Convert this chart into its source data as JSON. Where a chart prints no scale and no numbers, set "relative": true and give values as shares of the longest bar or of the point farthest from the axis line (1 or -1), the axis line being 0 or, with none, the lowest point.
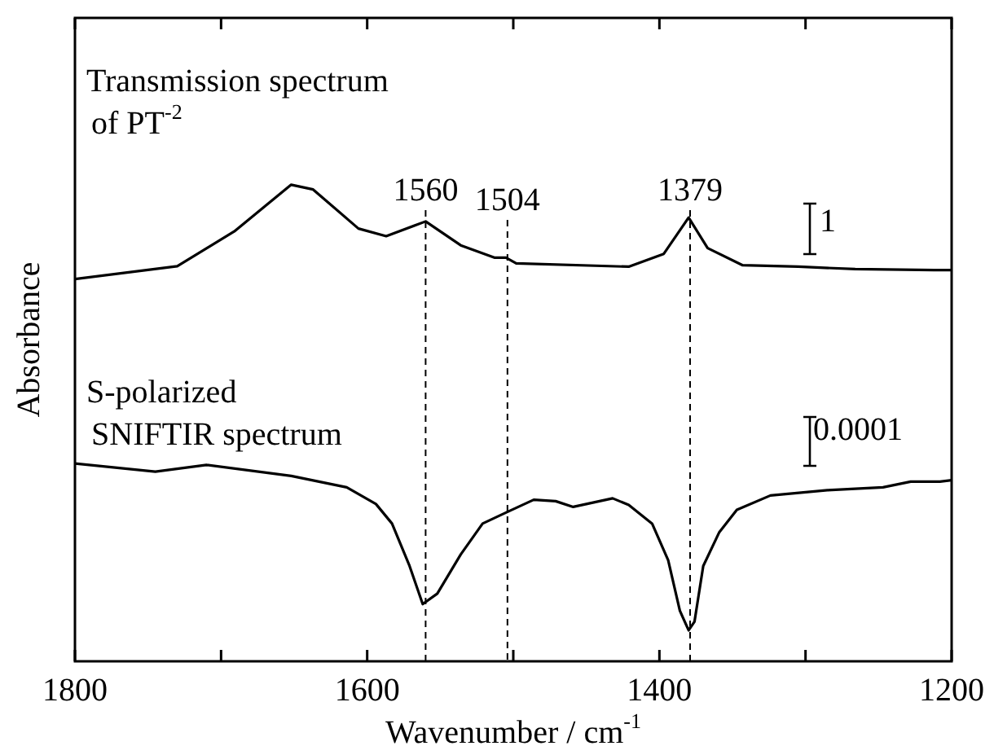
{
  "chart_data": {
    "type": "line",
    "relative": true,
    "xlabel": "Wavenumber / cm$^{-1}$",
    "ylabel": "Absorbance",
    "xlim": [
      1800,
      1200
    ],
    "xticks": [
      1800,
      {
        "value": 1700,
        "label": null
      },
      1600,
      {
        "value": 1500,
        "label": null
      },
      1400,
      {
        "value": 1300,
        "label": null
      },
      1200
    ],
    "legend": "top left",
    "grid": false,
    "marker": "none",
    "line_style": "solid",
    "series": [
      {
        "name": "Transmission spectrum\nof PT$^{-2}$",
        "color": "#000000",
        "x": [
          1800,
          1730,
          1691,
          1652,
          1637,
          1606,
          1587,
          1560,
          1536,
          1513,
          1505,
          1498,
          1421,
          1397,
          1380,
          1367,
          1343,
          1305,
          1266,
          1212,
          1200
        ],
        "values": [
          0.802,
          0.829,
          0.902,
          1,
          0.99,
          0.908,
          0.892,
          0.923,
          0.873,
          0.847,
          0.847,
          0.835,
          0.828,
          0.855,
          0.931,
          0.867,
          0.831,
          0.828,
          0.823,
          0.821,
          0.821
        ]
      },
      {
        "name": "S-polarized\nSNIFTIR spectrum",
        "color": "#000000",
        "x": [
          1800,
          1745,
          1710,
          1652,
          1614,
          1594,
          1583,
          1571,
          1562,
          1552,
          1536,
          1521,
          1505,
          1486,
          1471,
          1459,
          1432,
          1421,
          1405,
          1394,
          1386,
          1380,
          1376,
          1370,
          1359,
          1347,
          1324,
          1285,
          1247,
          1228,
          1208,
          1200
        ],
        "values": [
          0.415,
          0.398,
          0.412,
          0.389,
          0.365,
          0.33,
          0.289,
          0.2,
          0.12,
          0.142,
          0.224,
          0.289,
          0.312,
          0.339,
          0.336,
          0.324,
          0.342,
          0.328,
          0.289,
          0.212,
          0.106,
          0.065,
          0.083,
          0.2,
          0.271,
          0.318,
          0.348,
          0.359,
          0.365,
          0.377,
          0.377,
          0.38
        ]
      }
    ],
    "ref_lines": [
      {
        "axis": "x",
        "value": 1560,
        "label": "1560",
        "color": "#000000",
        "line_style": "dashed"
      },
      {
        "axis": "x",
        "value": 1504,
        "label": "1504",
        "color": "#000000",
        "line_style": "dashed"
      },
      {
        "axis": "x",
        "value": 1379,
        "label": "1379",
        "color": "#000000",
        "line_style": "dashed"
      }
    ],
    "annotations": [
      "1",
      "0.0001"
    ]
  }
}
